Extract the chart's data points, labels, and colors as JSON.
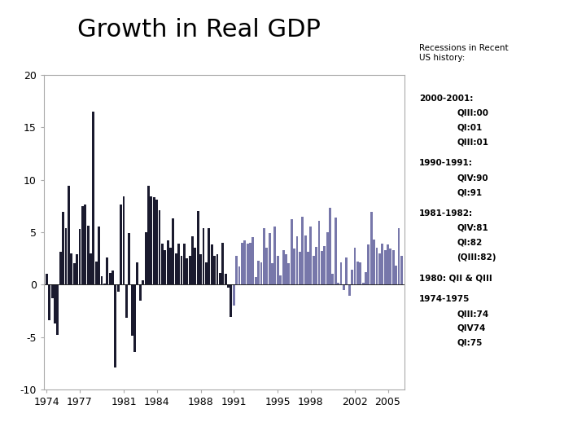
{
  "title": "Growth in Real GDP",
  "title_fontsize": 22,
  "ylim": [
    -10,
    20
  ],
  "yticks": [
    -10,
    -5,
    0,
    5,
    10,
    15,
    20
  ],
  "xtick_years": [
    1974,
    1977,
    1981,
    1984,
    1988,
    1991,
    1995,
    1998,
    2002,
    2005
  ],
  "bar_color_dark": "#1a1a2e",
  "bar_color_light": "#7777aa",
  "background": "#ffffff",
  "annotation_title": "Recessions in Recent\nUS history:",
  "recession_info": [
    {
      "header": "2000-2001:",
      "subs": [
        "QIII:00",
        "QI:01",
        "QIII:01"
      ]
    },
    {
      "header": "1990-1991:",
      "subs": [
        "QIV:90",
        "QI:91"
      ]
    },
    {
      "header": "1981-1982:",
      "subs": [
        "QIV:81",
        "QI:82",
        "(QIII:82)"
      ]
    },
    {
      "header": "1980: QII & QIII",
      "subs": []
    },
    {
      "header": "1974-1975",
      "subs": [
        "QIII:74",
        "QIV74",
        "QI:75"
      ]
    }
  ],
  "gdp_quarters": [
    1.0,
    -3.4,
    -1.3,
    -3.7,
    -4.8,
    3.1,
    6.9,
    5.4,
    9.4,
    3.0,
    2.0,
    2.9,
    5.3,
    7.5,
    7.6,
    5.6,
    3.0,
    16.5,
    2.2,
    5.5,
    0.8,
    0.1,
    2.6,
    1.1,
    1.3,
    -7.9,
    -0.7,
    7.6,
    8.4,
    -3.2,
    4.9,
    -4.9,
    -6.4,
    2.1,
    -1.5,
    0.4,
    5.0,
    9.4,
    8.4,
    8.3,
    8.1,
    7.1,
    3.9,
    3.3,
    4.2,
    3.5,
    6.3,
    3.0,
    3.9,
    2.7,
    3.9,
    2.5,
    2.7,
    4.6,
    3.5,
    7.0,
    2.9,
    5.4,
    2.1,
    5.4,
    3.8,
    2.7,
    2.9,
    1.1,
    4.0,
    1.0,
    -0.3,
    -3.1,
    -2.0,
    2.7,
    1.7,
    4.0,
    4.2,
    3.9,
    4.0,
    4.5,
    0.7,
    2.3,
    2.1,
    5.4,
    3.5,
    4.9,
    2.0,
    5.5,
    2.7,
    0.9,
    3.3,
    2.9,
    2.0,
    6.2,
    3.4,
    4.6,
    3.1,
    6.5,
    4.7,
    3.1,
    5.5,
    2.7,
    3.6,
    6.1,
    3.2,
    3.7,
    5.0,
    7.3,
    1.0,
    6.4,
    0.2,
    2.1,
    -0.5,
    2.6,
    -1.1,
    1.4,
    3.5,
    2.2,
    2.1,
    0.2,
    1.2,
    3.8,
    6.9,
    4.3,
    3.5,
    3.0,
    3.9,
    3.3,
    3.8,
    3.4,
    3.3,
    1.8,
    5.4,
    2.7,
    0.0,
    0.0
  ]
}
